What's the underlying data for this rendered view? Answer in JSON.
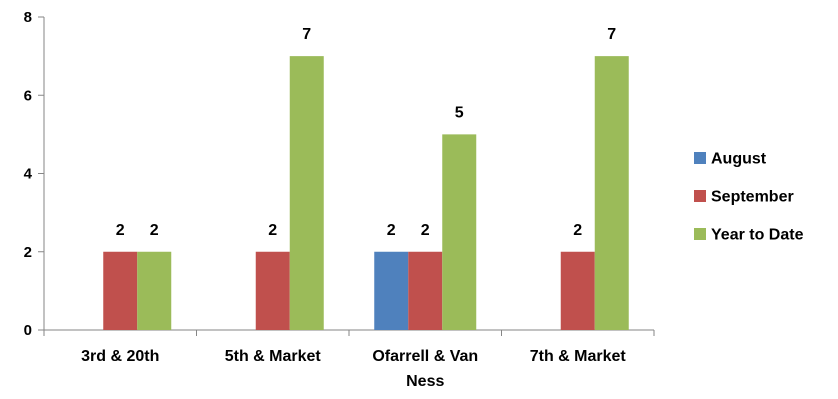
{
  "chart_data": {
    "type": "bar",
    "title": "",
    "xlabel": "",
    "ylabel": "",
    "categories": [
      [
        "3rd & 20th"
      ],
      [
        "5th & Market"
      ],
      [
        "Ofarrell & Van",
        "Ness"
      ],
      [
        "7th & Market"
      ]
    ],
    "series": [
      {
        "name": "August",
        "color": "#4F81BD",
        "values": [
          null,
          null,
          2,
          null
        ]
      },
      {
        "name": "September",
        "color": "#C0504D",
        "values": [
          2,
          2,
          2,
          2
        ]
      },
      {
        "name": "Year to Date",
        "color": "#9BBB59",
        "values": [
          2,
          7,
          5,
          7
        ]
      }
    ],
    "ylim": [
      0,
      8
    ],
    "yticks": [
      0,
      2,
      4,
      6,
      8
    ],
    "grid": false,
    "legend_position": "right",
    "data_labels": true
  }
}
